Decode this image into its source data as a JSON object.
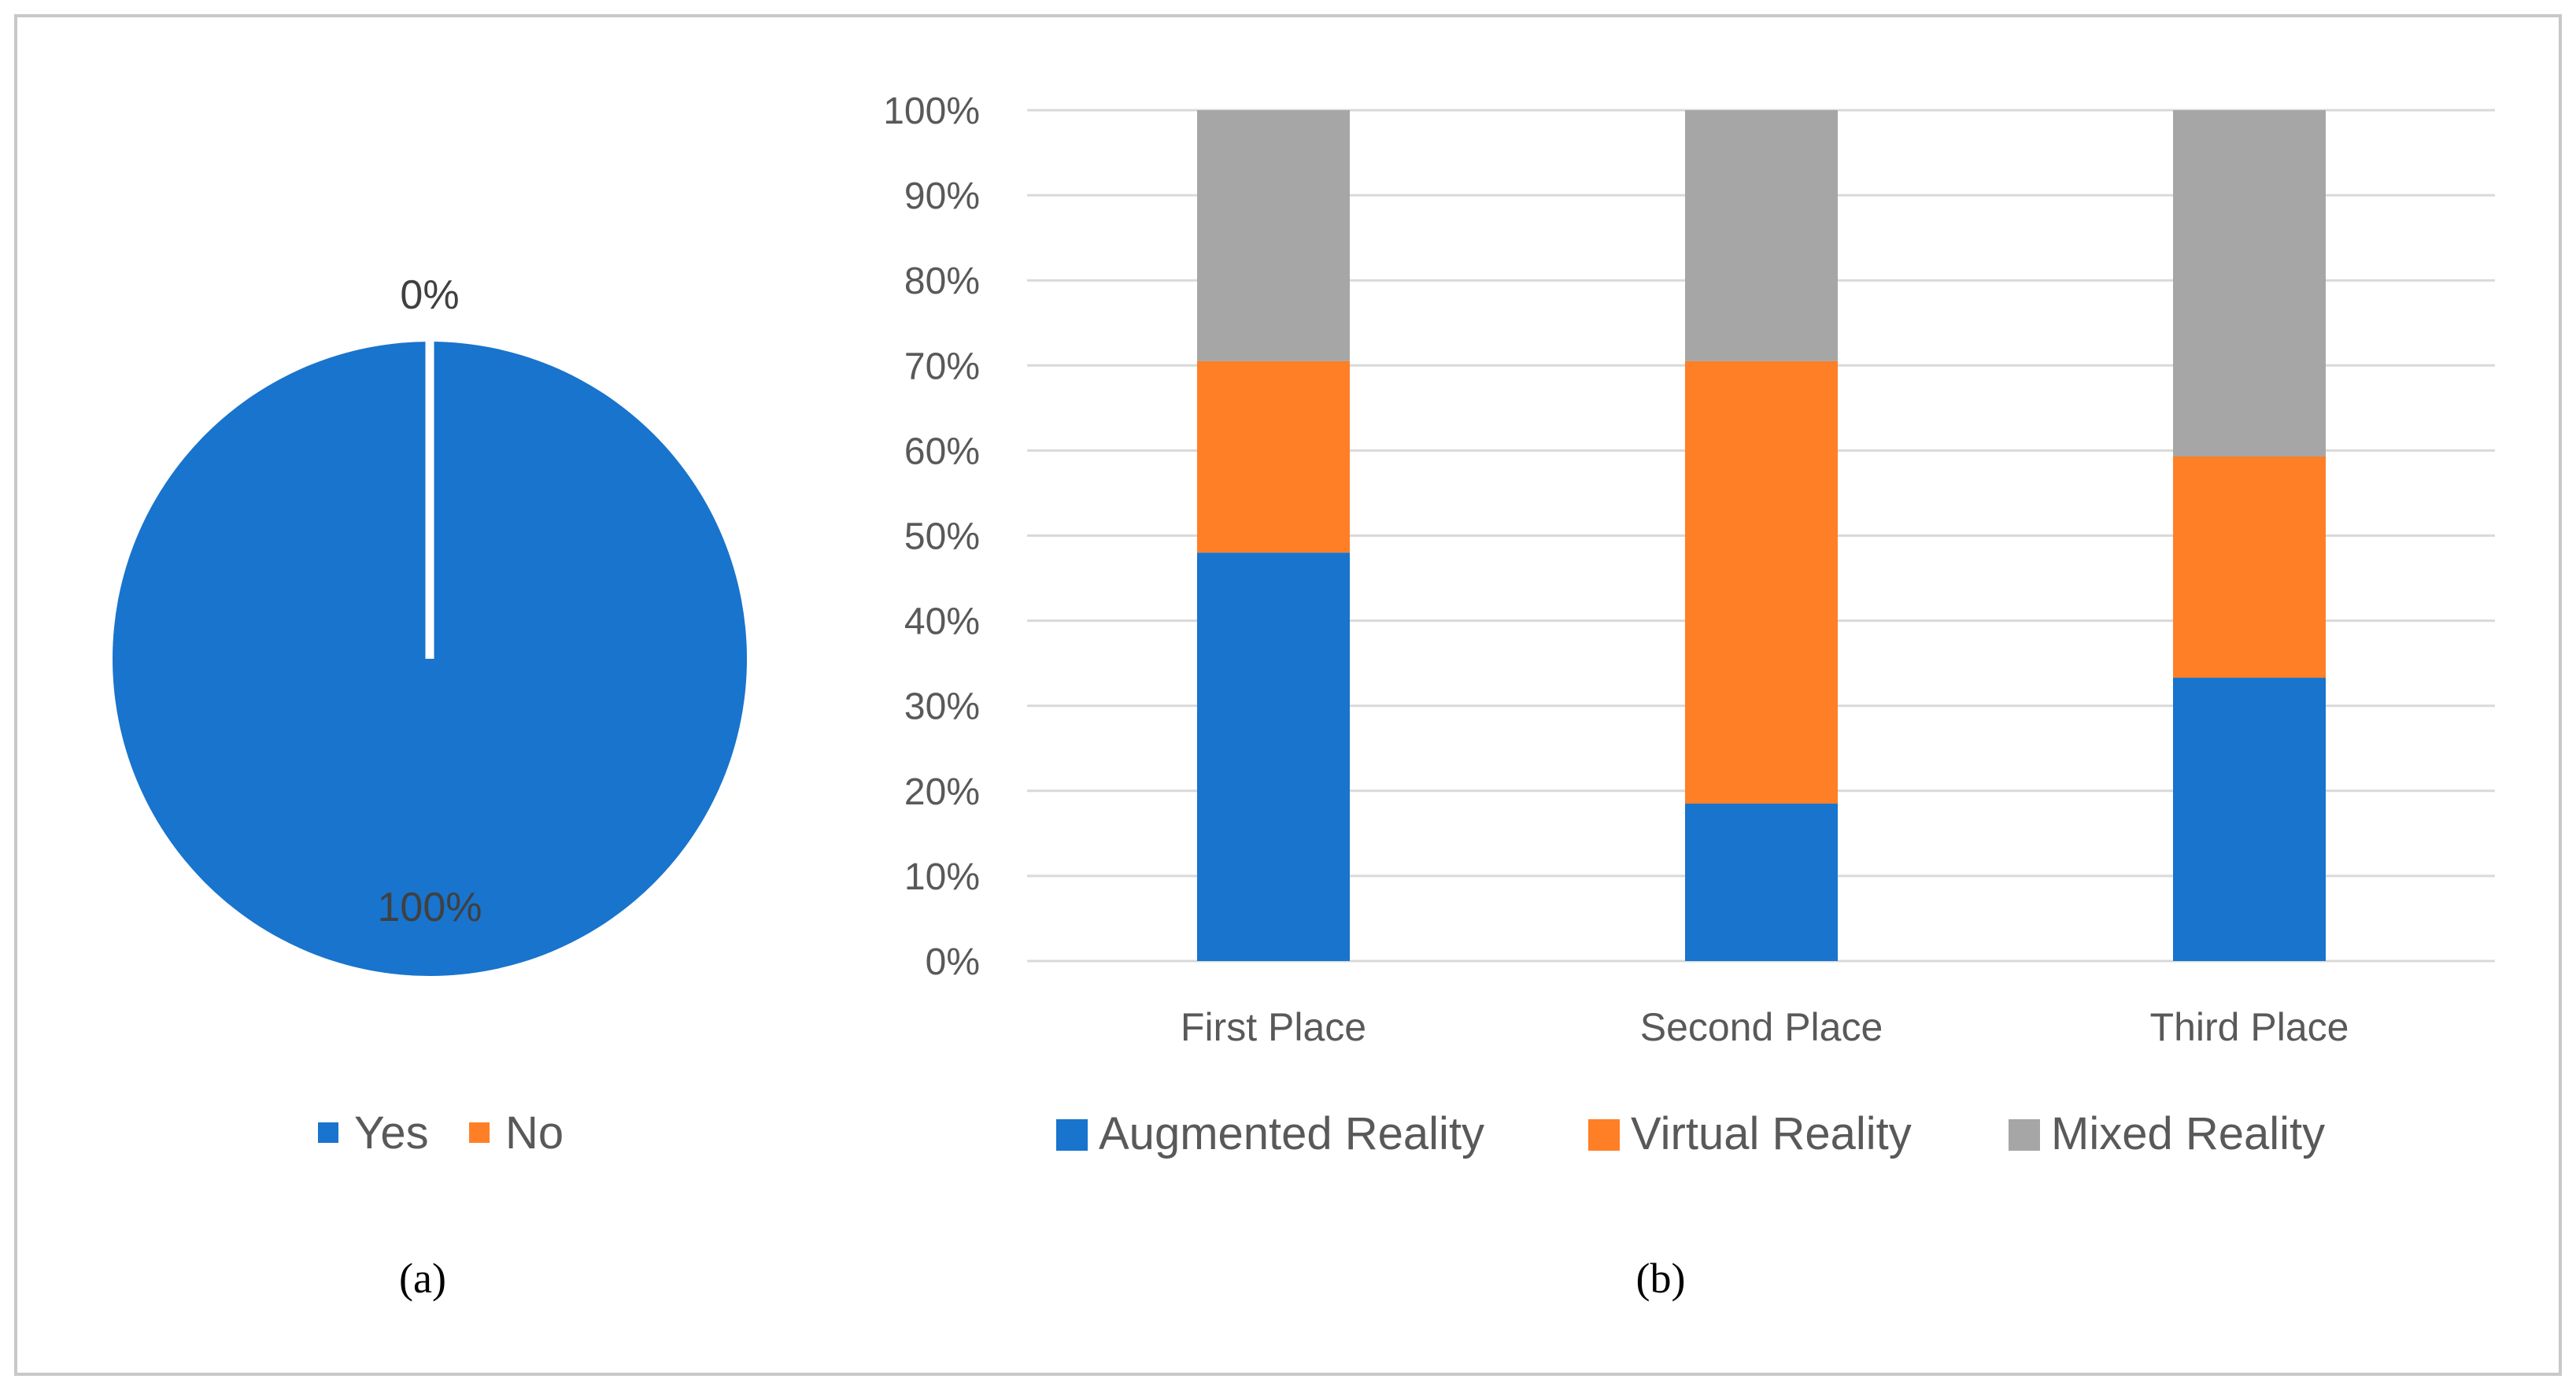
{
  "colors": {
    "augmented": "#1874CD",
    "virtual": "#FF7F27",
    "mixed": "#A6A6A6",
    "yes": "#1874CD",
    "no": "#FF7F27",
    "grid": "#D9D9D9",
    "frame": "#C8C8C8",
    "text": "#595959"
  },
  "chart_data": [
    {
      "type": "pie",
      "caption": "(a)",
      "slices": [
        {
          "label": "Yes",
          "value": 100,
          "data_label": "100%"
        },
        {
          "label": "No",
          "value": 0,
          "data_label": "0%"
        }
      ],
      "legend": [
        "Yes",
        "No"
      ]
    },
    {
      "type": "bar",
      "stacked": true,
      "caption": "(b)",
      "categories": [
        "First Place",
        "Second Place",
        "Third Place"
      ],
      "series": [
        {
          "name": "Augmented Reality",
          "color_key": "augmented",
          "values": [
            48,
            18.5,
            33.3
          ]
        },
        {
          "name": "Virtual Reality",
          "color_key": "virtual",
          "values": [
            22.5,
            52,
            26
          ]
        },
        {
          "name": "Mixed Reality",
          "color_key": "mixed",
          "values": [
            29.5,
            29.5,
            40.7
          ]
        }
      ],
      "ylim": [
        0,
        100
      ],
      "yticks": [
        "0%",
        "10%",
        "20%",
        "30%",
        "40%",
        "50%",
        "60%",
        "70%",
        "80%",
        "90%",
        "100%"
      ],
      "legend": [
        "Augmented Reality",
        "Virtual Reality",
        "Mixed Reality"
      ]
    }
  ]
}
